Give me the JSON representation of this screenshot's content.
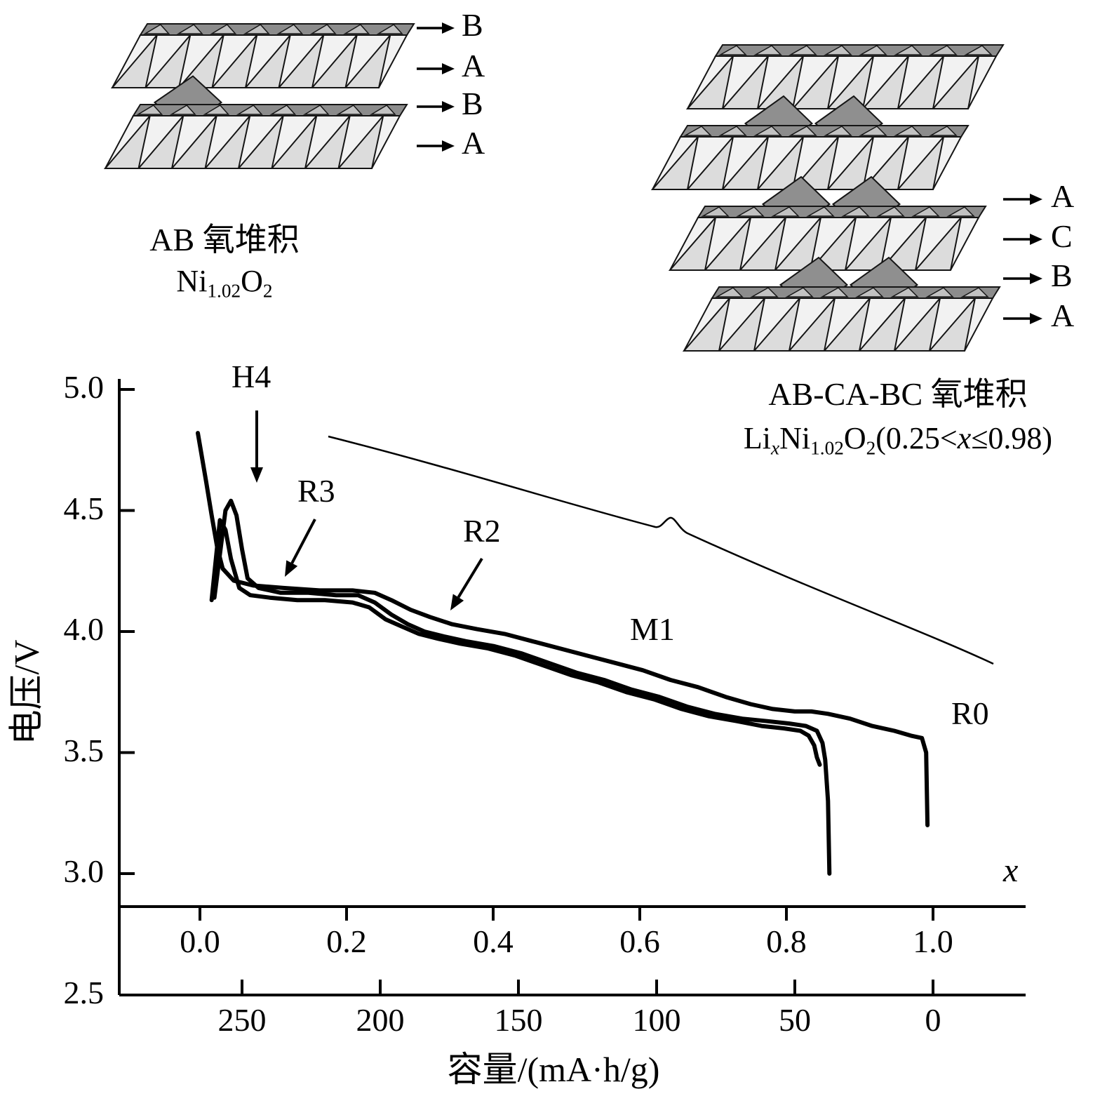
{
  "structures": {
    "left": {
      "caption": "AB 氧堆积",
      "formula_parts": [
        {
          "t": "Ni"
        },
        {
          "t": "1.02"
        },
        {
          "t": "O"
        },
        {
          "t": "2"
        }
      ],
      "layer_labels": [
        "B",
        "A",
        "B",
        "A"
      ]
    },
    "right": {
      "caption": "AB-CA-BC 氧堆积",
      "formula_parts": [
        {
          "t": "Li"
        },
        {
          "t": "x"
        },
        {
          "t": "Ni"
        },
        {
          "t": "1.02"
        },
        {
          "t": "O"
        },
        {
          "t": "2"
        },
        {
          "t": "(0.25<"
        },
        {
          "t": "x"
        },
        {
          "t": "≤0.98)"
        }
      ],
      "layer_labels": [
        "A",
        "C",
        "B",
        "A"
      ]
    }
  },
  "chart_data": {
    "type": "line",
    "title": "",
    "xlabel": "容量/(mA·h/g)",
    "ylabel": "电压/V",
    "secondary_xlabel": "x",
    "ylim": [
      2.5,
      5.0
    ],
    "y_axis": {
      "ticks": [
        "5.0",
        "4.5",
        "4.0",
        "3.5",
        "3.0",
        "2.5"
      ]
    },
    "capacity_axis": {
      "ticks": [
        "250",
        "200",
        "150",
        "100",
        "50",
        "0"
      ],
      "unit": "mA·h/g",
      "reversed": true
    },
    "x_fraction_axis": {
      "ticks": [
        "0.0",
        "0.2",
        "0.4",
        "0.6",
        "0.8",
        "1.0"
      ]
    },
    "annotations": [
      {
        "id": "h4",
        "label": "H4"
      },
      {
        "id": "r3",
        "label": "R3"
      },
      {
        "id": "r2",
        "label": "R2"
      },
      {
        "id": "m1",
        "label": "M1"
      },
      {
        "id": "r0",
        "label": "R0"
      }
    ],
    "series": [
      {
        "name": "discharge-curve-1",
        "points": [
          [
            266,
            4.82
          ],
          [
            263,
            4.62
          ],
          [
            261,
            4.48
          ],
          [
            259,
            4.35
          ],
          [
            257,
            4.26
          ],
          [
            253,
            4.21
          ],
          [
            246,
            4.19
          ],
          [
            235,
            4.18
          ],
          [
            222,
            4.17
          ],
          [
            210,
            4.17
          ],
          [
            202,
            4.16
          ],
          [
            196,
            4.13
          ],
          [
            189,
            4.09
          ],
          [
            182,
            4.06
          ],
          [
            174,
            4.03
          ],
          [
            165,
            4.01
          ],
          [
            155,
            3.99
          ],
          [
            145,
            3.96
          ],
          [
            135,
            3.93
          ],
          [
            125,
            3.9
          ],
          [
            115,
            3.87
          ],
          [
            105,
            3.84
          ],
          [
            95,
            3.8
          ],
          [
            85,
            3.77
          ],
          [
            75,
            3.73
          ],
          [
            66,
            3.7
          ],
          [
            58,
            3.68
          ],
          [
            50,
            3.67
          ],
          [
            44,
            3.67
          ],
          [
            38,
            3.66
          ],
          [
            30,
            3.64
          ],
          [
            22,
            3.61
          ],
          [
            14,
            3.59
          ],
          [
            8,
            3.57
          ],
          [
            4,
            3.56
          ],
          [
            2.5,
            3.5
          ],
          [
            2,
            3.2
          ]
        ]
      },
      {
        "name": "discharge-curve-2",
        "points": [
          [
            260,
            4.14
          ],
          [
            258,
            4.32
          ],
          [
            256,
            4.5
          ],
          [
            254,
            4.54
          ],
          [
            252,
            4.48
          ],
          [
            250,
            4.34
          ],
          [
            248,
            4.22
          ],
          [
            244,
            4.18
          ],
          [
            236,
            4.16
          ],
          [
            226,
            4.16
          ],
          [
            216,
            4.15
          ],
          [
            208,
            4.15
          ],
          [
            202,
            4.12
          ],
          [
            196,
            4.07
          ],
          [
            190,
            4.03
          ],
          [
            184,
            4.0
          ],
          [
            177,
            3.98
          ],
          [
            169,
            3.96
          ],
          [
            159,
            3.94
          ],
          [
            149,
            3.91
          ],
          [
            139,
            3.87
          ],
          [
            129,
            3.83
          ],
          [
            119,
            3.8
          ],
          [
            109,
            3.76
          ],
          [
            99,
            3.73
          ],
          [
            89,
            3.69
          ],
          [
            79,
            3.66
          ],
          [
            69,
            3.64
          ],
          [
            60,
            3.63
          ],
          [
            52,
            3.62
          ],
          [
            46,
            3.61
          ],
          [
            42,
            3.59
          ],
          [
            40,
            3.54
          ],
          [
            39,
            3.47
          ],
          [
            38,
            3.3
          ],
          [
            37.5,
            3.0
          ]
        ]
      },
      {
        "name": "discharge-curve-3",
        "points": [
          [
            261,
            4.13
          ],
          [
            259,
            4.35
          ],
          [
            258,
            4.46
          ],
          [
            256,
            4.42
          ],
          [
            254,
            4.3
          ],
          [
            251,
            4.18
          ],
          [
            247,
            4.15
          ],
          [
            240,
            4.14
          ],
          [
            230,
            4.13
          ],
          [
            220,
            4.13
          ],
          [
            210,
            4.12
          ],
          [
            204,
            4.1
          ],
          [
            198,
            4.05
          ],
          [
            192,
            4.02
          ],
          [
            186,
            3.99
          ],
          [
            179,
            3.97
          ],
          [
            171,
            3.95
          ],
          [
            161,
            3.93
          ],
          [
            151,
            3.9
          ],
          [
            141,
            3.86
          ],
          [
            131,
            3.82
          ],
          [
            121,
            3.79
          ],
          [
            111,
            3.75
          ],
          [
            101,
            3.72
          ],
          [
            91,
            3.68
          ],
          [
            81,
            3.65
          ],
          [
            71,
            3.63
          ],
          [
            62,
            3.61
          ],
          [
            54,
            3.6
          ],
          [
            48,
            3.59
          ],
          [
            45,
            3.57
          ],
          [
            43,
            3.53
          ],
          [
            42,
            3.48
          ],
          [
            41,
            3.45
          ]
        ]
      }
    ]
  }
}
